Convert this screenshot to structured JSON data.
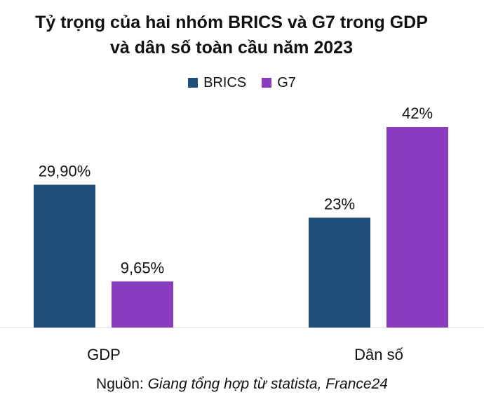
{
  "chart_data": {
    "type": "bar",
    "title": "Tỷ trọng của hai nhóm BRICS và G7 trong GDP và dân số toàn cầu năm 2023",
    "title_lines": [
      "Tỷ trọng của hai nhóm BRICS và G7 trong GDP",
      "và dân số toàn cầu năm 2023"
    ],
    "categories": [
      "GDP",
      "Dân số"
    ],
    "series": [
      {
        "name": "BRICS",
        "color": "#1f4e79",
        "values": [
          29.9,
          23
        ],
        "labels": [
          "29,90%",
          "23%"
        ]
      },
      {
        "name": "G7",
        "color": "#8a3cc0",
        "values": [
          9.65,
          42
        ],
        "labels": [
          "9,65%",
          "42%"
        ]
      }
    ],
    "xlabel": "",
    "ylabel": "",
    "ylim": [
      0,
      45
    ],
    "grid": false,
    "legend": "top-center"
  },
  "source": {
    "prefix": "Nguồn: ",
    "text": "Giang tổng hợp từ statista, France24"
  }
}
